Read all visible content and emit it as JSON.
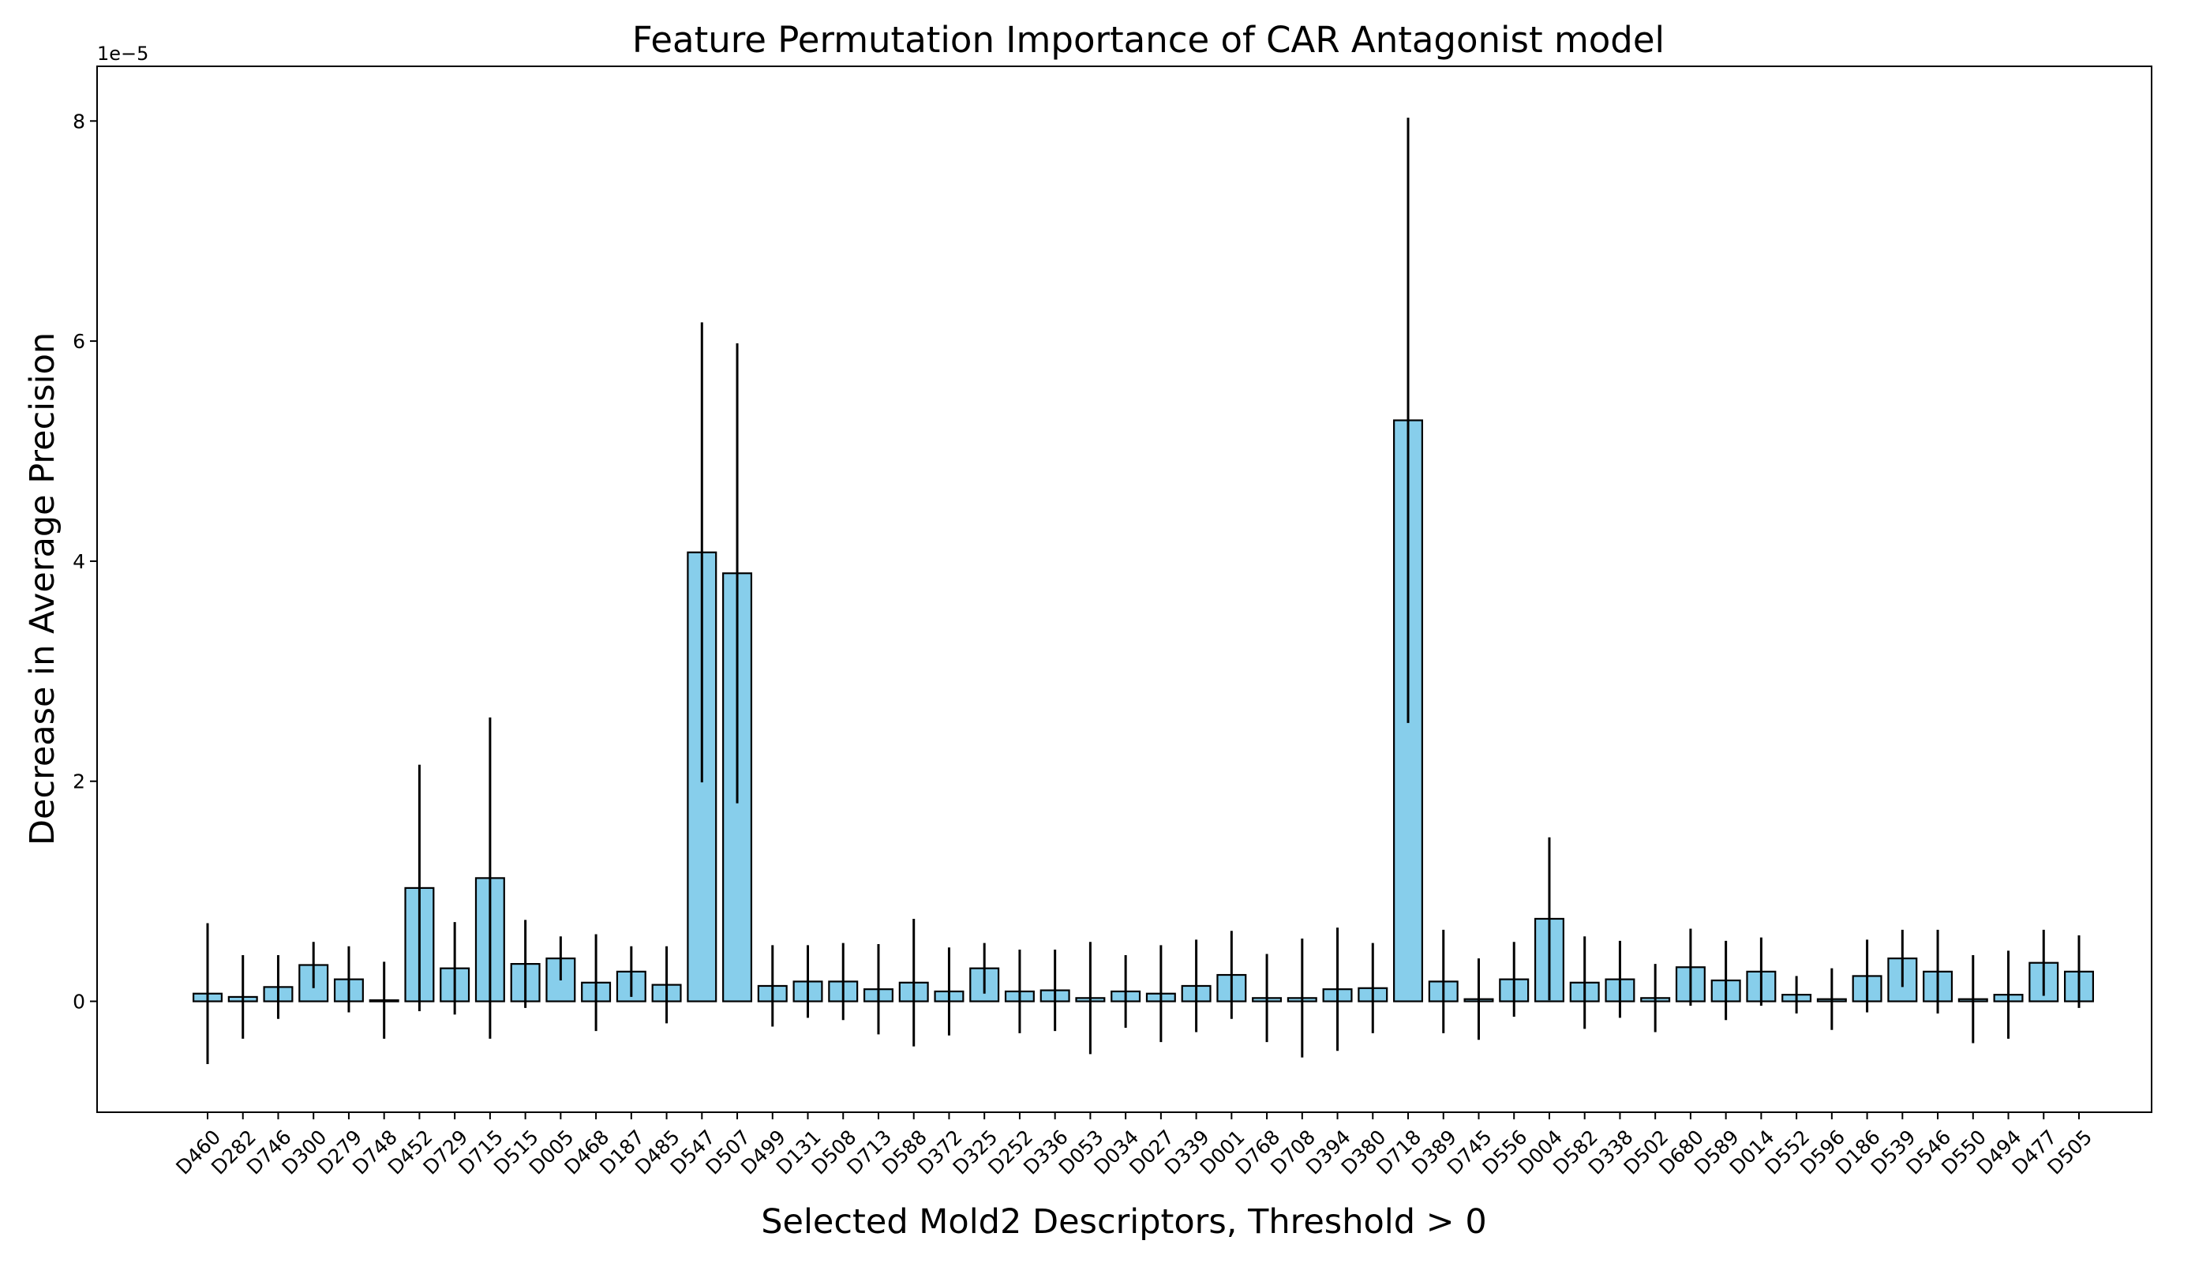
{
  "chart_data": {
    "type": "bar",
    "title": "Feature Permutation Importance of CAR Antagonist model",
    "xlabel": "Selected Mold2 Descriptors, Threshold > 0",
    "ylabel": "Decrease in Average Precision",
    "y_scale_offset": "1e−5",
    "y_multiplier": 1e-05,
    "ylim": [
      -1.0,
      8.5
    ],
    "yticks": [
      0,
      2,
      4,
      6,
      8
    ],
    "grid": false,
    "legend": "none",
    "bar_color": "#87CEEB",
    "edge_color": "#000000",
    "categories": [
      "D460",
      "D282",
      "D746",
      "D300",
      "D279",
      "D748",
      "D452",
      "D729",
      "D715",
      "D515",
      "D005",
      "D468",
      "D187",
      "D485",
      "D547",
      "D507",
      "D499",
      "D131",
      "D508",
      "D713",
      "D588",
      "D372",
      "D325",
      "D252",
      "D336",
      "D053",
      "D034",
      "D027",
      "D339",
      "D001",
      "D768",
      "D708",
      "D394",
      "D380",
      "D718",
      "D389",
      "D745",
      "D556",
      "D004",
      "D582",
      "D338",
      "D502",
      "D680",
      "D589",
      "D014",
      "D552",
      "D596",
      "D186",
      "D539",
      "D546",
      "D550",
      "D494",
      "D477",
      "D505"
    ],
    "values": [
      0.07,
      0.04,
      0.13,
      0.33,
      0.2,
      0.01,
      1.03,
      0.3,
      1.12,
      0.34,
      0.39,
      0.17,
      0.27,
      0.15,
      4.08,
      3.89,
      0.14,
      0.18,
      0.18,
      0.11,
      0.17,
      0.09,
      0.3,
      0.09,
      0.1,
      0.03,
      0.09,
      0.07,
      0.14,
      0.24,
      0.03,
      0.03,
      0.11,
      0.12,
      5.28,
      0.18,
      0.02,
      0.2,
      0.75,
      0.17,
      0.2,
      0.03,
      0.31,
      0.19,
      0.27,
      0.06,
      0.02,
      0.23,
      0.39,
      0.27,
      0.02,
      0.06,
      0.35,
      0.27
    ],
    "errors": [
      0.64,
      0.38,
      0.29,
      0.21,
      0.3,
      0.35,
      1.12,
      0.42,
      1.46,
      0.4,
      0.2,
      0.44,
      0.23,
      0.35,
      2.09,
      2.09,
      0.37,
      0.33,
      0.35,
      0.41,
      0.58,
      0.4,
      0.23,
      0.38,
      0.37,
      0.51,
      0.33,
      0.44,
      0.42,
      0.4,
      0.4,
      0.54,
      0.56,
      0.41,
      2.75,
      0.47,
      0.37,
      0.34,
      0.74,
      0.42,
      0.35,
      0.31,
      0.35,
      0.36,
      0.31,
      0.17,
      0.28,
      0.33,
      0.26,
      0.38,
      0.4,
      0.4,
      0.3,
      0.33
    ]
  }
}
